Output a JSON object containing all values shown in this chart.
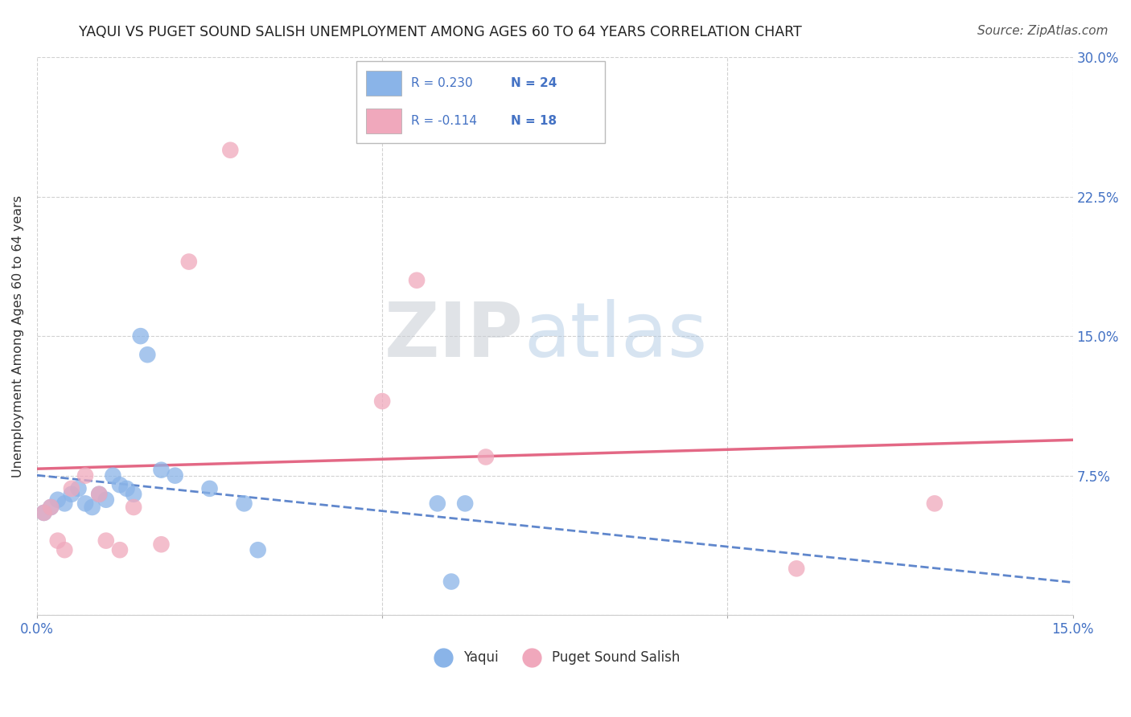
{
  "title": "YAQUI VS PUGET SOUND SALISH UNEMPLOYMENT AMONG AGES 60 TO 64 YEARS CORRELATION CHART",
  "source": "Source: ZipAtlas.com",
  "ylabel": "Unemployment Among Ages 60 to 64 years",
  "xlim": [
    0.0,
    0.15
  ],
  "ylim": [
    0.0,
    0.3
  ],
  "xticks": [
    0.0,
    0.05,
    0.1,
    0.15
  ],
  "yticks": [
    0.0,
    0.075,
    0.15,
    0.225,
    0.3
  ],
  "ytick_labels_right": [
    "",
    "7.5%",
    "15.0%",
    "22.5%",
    "30.0%"
  ],
  "grid_color": "#cccccc",
  "background_color": "#ffffff",
  "yaqui_color": "#8ab4e8",
  "puget_color": "#f0a8bc",
  "yaqui_line_color": "#4472c4",
  "puget_line_color": "#e05878",
  "yaqui_x": [
    0.001,
    0.002,
    0.003,
    0.004,
    0.005,
    0.006,
    0.007,
    0.008,
    0.009,
    0.01,
    0.011,
    0.012,
    0.013,
    0.014,
    0.015,
    0.016,
    0.018,
    0.02,
    0.025,
    0.03,
    0.032,
    0.058,
    0.06,
    0.062
  ],
  "yaqui_y": [
    0.055,
    0.058,
    0.062,
    0.06,
    0.065,
    0.068,
    0.06,
    0.058,
    0.065,
    0.062,
    0.075,
    0.07,
    0.068,
    0.065,
    0.15,
    0.14,
    0.078,
    0.075,
    0.068,
    0.06,
    0.035,
    0.06,
    0.018,
    0.06
  ],
  "puget_x": [
    0.001,
    0.002,
    0.003,
    0.004,
    0.005,
    0.007,
    0.009,
    0.01,
    0.012,
    0.014,
    0.018,
    0.022,
    0.028,
    0.05,
    0.055,
    0.065,
    0.11,
    0.13
  ],
  "puget_y": [
    0.055,
    0.058,
    0.04,
    0.035,
    0.068,
    0.075,
    0.065,
    0.04,
    0.035,
    0.058,
    0.038,
    0.19,
    0.25,
    0.115,
    0.18,
    0.085,
    0.025,
    0.06
  ],
  "watermark_zip": "ZIP",
  "watermark_atlas": "atlas",
  "figsize": [
    14.06,
    8.92
  ],
  "dpi": 100
}
